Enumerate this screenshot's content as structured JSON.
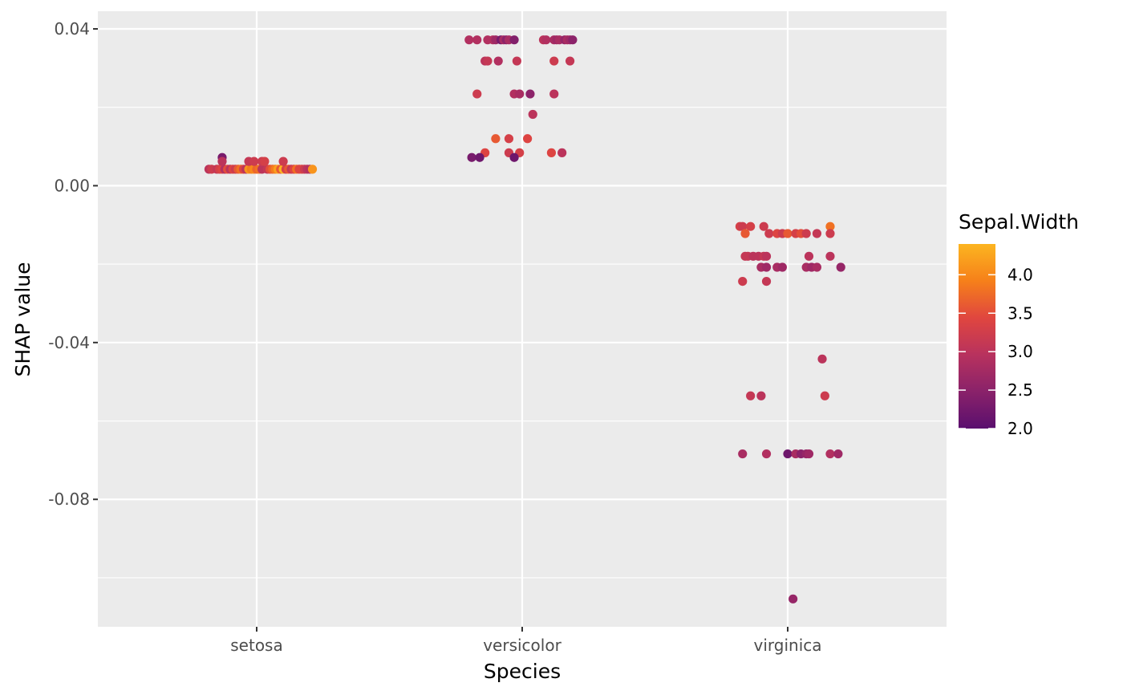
{
  "chart_data": {
    "type": "scatter",
    "title": "",
    "xlabel": "Species",
    "ylabel": "SHAP value",
    "categories": [
      "setosa",
      "versicolor",
      "virginica"
    ],
    "y_ticks": [
      "0.04",
      "0.00",
      "-0.04",
      "-0.08"
    ],
    "y_tick_values": [
      0.04,
      0.0,
      -0.04,
      -0.08
    ],
    "ylim": [
      -0.1125,
      0.0445
    ],
    "grid": true,
    "legend": {
      "title": "Sepal.Width",
      "placement": "right",
      "type": "colorbar",
      "min": 2.0,
      "max": 4.4,
      "tick_labels": [
        "4.0",
        "3.5",
        "3.0",
        "2.5",
        "2.0"
      ],
      "tick_values": [
        4.0,
        3.5,
        3.0,
        2.5,
        2.0
      ],
      "colors": [
        "#5a0f6e",
        "#8a226a",
        "#b8325e",
        "#e0463f",
        "#f6801a",
        "#fcb520"
      ]
    },
    "series": [
      {
        "category": "setosa",
        "points": [
          [
            -0.18,
            0.0042,
            3.0
          ],
          [
            -0.17,
            0.0042,
            3.2
          ],
          [
            -0.15,
            0.0042,
            3.1
          ],
          [
            -0.14,
            0.0042,
            3.3
          ],
          [
            -0.13,
            0.0042,
            3.4
          ],
          [
            -0.12,
            0.0042,
            2.9
          ],
          [
            -0.11,
            0.0042,
            3.5
          ],
          [
            -0.1,
            0.0042,
            3.0
          ],
          [
            -0.09,
            0.0042,
            3.4
          ],
          [
            -0.08,
            0.0042,
            3.2
          ],
          [
            -0.07,
            0.0042,
            3.6
          ],
          [
            -0.06,
            0.0042,
            3.8
          ],
          [
            -0.05,
            0.0042,
            3.4
          ],
          [
            -0.04,
            0.0042,
            3.0
          ],
          [
            -0.03,
            0.0042,
            4.1
          ],
          [
            -0.02,
            0.0042,
            3.9
          ],
          [
            -0.01,
            0.0042,
            4.0
          ],
          [
            0.0,
            0.0042,
            3.7
          ],
          [
            0.01,
            0.0042,
            3.8
          ],
          [
            0.02,
            0.0042,
            3.0
          ],
          [
            0.04,
            0.0042,
            3.1
          ],
          [
            0.05,
            0.0042,
            3.5
          ],
          [
            0.06,
            0.0042,
            3.7
          ],
          [
            0.07,
            0.0042,
            3.9
          ],
          [
            0.08,
            0.0042,
            4.2
          ],
          [
            0.09,
            0.0042,
            3.6
          ],
          [
            0.1,
            0.0042,
            4.4
          ],
          [
            0.11,
            0.0042,
            3.3
          ],
          [
            0.12,
            0.0042,
            3.6
          ],
          [
            0.13,
            0.0042,
            3.1
          ],
          [
            0.14,
            0.0042,
            3.4
          ],
          [
            0.15,
            0.0042,
            3.8
          ],
          [
            0.16,
            0.0042,
            3.4
          ],
          [
            0.17,
            0.0042,
            3.4
          ],
          [
            0.18,
            0.0042,
            3.2
          ],
          [
            0.19,
            0.0042,
            3.0
          ],
          [
            0.2,
            0.0042,
            2.9
          ],
          [
            0.21,
            0.0042,
            4.1
          ],
          [
            -0.13,
            0.0072,
            2.3
          ],
          [
            -0.13,
            0.0062,
            3.0
          ],
          [
            -0.03,
            0.0062,
            3.1
          ],
          [
            -0.01,
            0.0062,
            3.2
          ],
          [
            0.02,
            0.0062,
            3.2
          ],
          [
            0.03,
            0.0062,
            3.3
          ],
          [
            0.1,
            0.0062,
            3.2
          ]
        ]
      },
      {
        "category": "versicolor",
        "points": [
          [
            -0.2,
            0.0372,
            2.9
          ],
          [
            -0.17,
            0.0372,
            2.9
          ],
          [
            -0.13,
            0.0372,
            2.9
          ],
          [
            -0.11,
            0.0372,
            2.9
          ],
          [
            -0.1,
            0.0372,
            2.7
          ],
          [
            -0.08,
            0.0372,
            2.3
          ],
          [
            -0.07,
            0.0372,
            2.8
          ],
          [
            -0.06,
            0.0372,
            2.5
          ],
          [
            -0.05,
            0.0372,
            2.8
          ],
          [
            -0.03,
            0.0372,
            2.4
          ],
          [
            0.08,
            0.0372,
            3.0
          ],
          [
            0.09,
            0.0372,
            2.9
          ],
          [
            0.12,
            0.0372,
            2.8
          ],
          [
            0.13,
            0.0372,
            2.7
          ],
          [
            0.14,
            0.0372,
            2.8
          ],
          [
            0.16,
            0.0372,
            2.6
          ],
          [
            0.17,
            0.0372,
            2.8
          ],
          [
            0.18,
            0.0372,
            2.7
          ],
          [
            0.19,
            0.0372,
            2.5
          ],
          [
            -0.14,
            0.0318,
            3.0
          ],
          [
            -0.13,
            0.0318,
            3.1
          ],
          [
            -0.09,
            0.0318,
            2.9
          ],
          [
            -0.02,
            0.0318,
            3.1
          ],
          [
            0.12,
            0.0318,
            3.2
          ],
          [
            0.18,
            0.0318,
            3.1
          ],
          [
            -0.17,
            0.0234,
            3.2
          ],
          [
            -0.03,
            0.0234,
            2.9
          ],
          [
            -0.01,
            0.0234,
            2.8
          ],
          [
            0.03,
            0.0234,
            2.5
          ],
          [
            0.12,
            0.0234,
            3.0
          ],
          [
            0.04,
            0.0182,
            3.0
          ],
          [
            -0.1,
            0.012,
            3.6
          ],
          [
            -0.05,
            0.012,
            3.3
          ],
          [
            0.02,
            0.012,
            3.4
          ],
          [
            -0.14,
            0.0084,
            3.4
          ],
          [
            -0.05,
            0.0084,
            3.2
          ],
          [
            -0.01,
            0.0084,
            3.3
          ],
          [
            0.11,
            0.0084,
            3.4
          ],
          [
            0.15,
            0.0084,
            3.0
          ],
          [
            -0.19,
            0.0072,
            2.3
          ],
          [
            -0.16,
            0.0072,
            2.2
          ],
          [
            -0.03,
            0.0072,
            2.2
          ]
        ]
      },
      {
        "category": "virginica",
        "points": [
          [
            -0.18,
            -0.0104,
            3.3
          ],
          [
            -0.17,
            -0.0104,
            3.2
          ],
          [
            -0.14,
            -0.0104,
            3.3
          ],
          [
            -0.09,
            -0.0104,
            3.2
          ],
          [
            0.16,
            -0.0104,
            3.8
          ],
          [
            -0.16,
            -0.0122,
            3.6
          ],
          [
            -0.07,
            -0.0122,
            3.2
          ],
          [
            -0.04,
            -0.0122,
            3.4
          ],
          [
            -0.02,
            -0.0122,
            3.2
          ],
          [
            0.0,
            -0.0122,
            3.6
          ],
          [
            0.03,
            -0.0122,
            3.3
          ],
          [
            0.05,
            -0.0122,
            3.5
          ],
          [
            0.07,
            -0.0122,
            3.2
          ],
          [
            0.11,
            -0.0122,
            3.1
          ],
          [
            0.16,
            -0.0122,
            3.2
          ],
          [
            -0.16,
            -0.018,
            3.1
          ],
          [
            -0.15,
            -0.018,
            3.1
          ],
          [
            -0.13,
            -0.018,
            3.0
          ],
          [
            -0.11,
            -0.018,
            3.0
          ],
          [
            -0.09,
            -0.018,
            3.1
          ],
          [
            -0.08,
            -0.018,
            3.0
          ],
          [
            0.08,
            -0.018,
            3.0
          ],
          [
            0.16,
            -0.018,
            3.0
          ],
          [
            -0.1,
            -0.0208,
            2.8
          ],
          [
            -0.08,
            -0.0208,
            2.7
          ],
          [
            -0.04,
            -0.0208,
            2.8
          ],
          [
            -0.02,
            -0.0208,
            2.7
          ],
          [
            0.07,
            -0.0208,
            2.8
          ],
          [
            0.09,
            -0.0208,
            2.7
          ],
          [
            0.11,
            -0.0208,
            2.8
          ],
          [
            0.2,
            -0.0208,
            2.6
          ],
          [
            -0.17,
            -0.0244,
            3.2
          ],
          [
            -0.08,
            -0.0244,
            3.1
          ],
          [
            0.13,
            -0.0442,
            3.0
          ],
          [
            -0.14,
            -0.0536,
            3.1
          ],
          [
            -0.1,
            -0.0536,
            3.0
          ],
          [
            0.14,
            -0.0536,
            3.2
          ],
          [
            -0.17,
            -0.0684,
            2.8
          ],
          [
            -0.08,
            -0.0684,
            2.9
          ],
          [
            0.0,
            -0.0684,
            2.2
          ],
          [
            0.03,
            -0.0684,
            2.8
          ],
          [
            0.05,
            -0.0684,
            2.5
          ],
          [
            0.07,
            -0.0684,
            2.6
          ],
          [
            0.08,
            -0.0684,
            2.7
          ],
          [
            0.16,
            -0.0684,
            2.9
          ],
          [
            0.19,
            -0.0684,
            2.7
          ],
          [
            0.02,
            -0.1054,
            2.6
          ]
        ]
      }
    ]
  }
}
